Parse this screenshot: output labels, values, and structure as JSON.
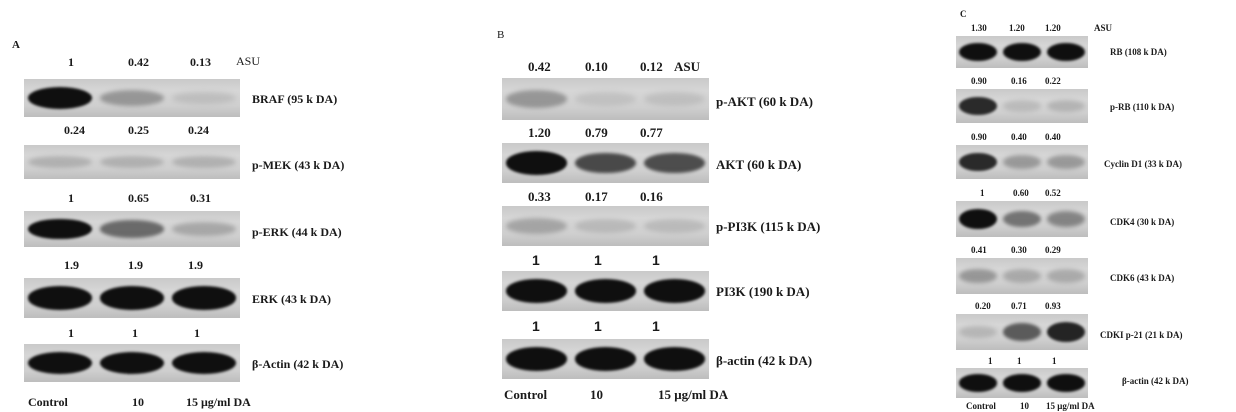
{
  "panels": {
    "A": {
      "letter": "A",
      "asu_label": "ASU",
      "blots": [
        {
          "label": "BRAF (95 k DA)",
          "values": [
            "1",
            "0.42",
            "0.13"
          ],
          "intensity": [
            1,
            0.42,
            0.13
          ]
        },
        {
          "label": "p-MEK (43 k DA)",
          "values": [
            "0.24",
            "0.25",
            "0.24"
          ],
          "intensity": [
            0.24,
            0.25,
            0.24
          ]
        },
        {
          "label": "p-ERK (44 k DA)",
          "values": [
            "1",
            "0.65",
            "0.31"
          ],
          "intensity": [
            1,
            0.65,
            0.31
          ]
        },
        {
          "label": "ERK (43 k DA)",
          "values": [
            "1.9",
            "1.9",
            "1.9"
          ],
          "intensity": [
            1.9,
            1.9,
            1.9
          ]
        },
        {
          "label": "β-Actin (42 k DA)",
          "values": [
            "1",
            "1",
            "1"
          ],
          "intensity": [
            1,
            1,
            1
          ]
        }
      ],
      "lanes": [
        "Control",
        "10",
        "15 μg/ml DA"
      ]
    },
    "B": {
      "letter": "B",
      "asu_label": "ASU",
      "blots": [
        {
          "label": "p-AKT (60 k DA)",
          "values": [
            "0.42",
            "0.10",
            "0.12"
          ],
          "intensity": [
            0.42,
            0.1,
            0.12
          ]
        },
        {
          "label": "AKT (60 k DA)",
          "values": [
            "1.20",
            "0.79",
            "0.77"
          ],
          "intensity": [
            1.2,
            0.79,
            0.77
          ]
        },
        {
          "label": "p-PI3K (115 k DA)",
          "values": [
            "0.33",
            "0.17",
            "0.16"
          ],
          "intensity": [
            0.33,
            0.17,
            0.16
          ]
        },
        {
          "label": "PI3K (190 k DA)",
          "values": [
            "1",
            "1",
            "1"
          ],
          "intensity": [
            1,
            1,
            1
          ]
        },
        {
          "label": "β-actin (42 k DA)",
          "values": [
            "1",
            "1",
            "1"
          ],
          "intensity": [
            1,
            1,
            1
          ]
        }
      ],
      "lanes": [
        "Control",
        "10",
        "15 μg/ml DA"
      ]
    },
    "C": {
      "letter": "C",
      "asu_label": "ASU",
      "blots": [
        {
          "label": "RB (108 k DA)",
          "values": [
            "1.30",
            "1.20",
            "1.20"
          ],
          "intensity": [
            1.3,
            1.2,
            1.2
          ]
        },
        {
          "label": "p-RB (110 k DA)",
          "values": [
            "0.90",
            "0.16",
            "0.22"
          ],
          "intensity": [
            0.9,
            0.16,
            0.22
          ]
        },
        {
          "label": "Cyclin D1 (33 k DA)",
          "values": [
            "0.90",
            "0.40",
            "0.40"
          ],
          "intensity": [
            0.9,
            0.4,
            0.4
          ]
        },
        {
          "label": "CDK4 (30 k DA)",
          "values": [
            "1",
            "0.60",
            "0.52"
          ],
          "intensity": [
            1,
            0.6,
            0.52
          ]
        },
        {
          "label": "CDK6 (43 k DA)",
          "values": [
            "0.41",
            "0.30",
            "0.29"
          ],
          "intensity": [
            0.41,
            0.3,
            0.29
          ]
        },
        {
          "label": "CDKI p-21 (21 k DA)",
          "values": [
            "0.20",
            "0.71",
            "0.93"
          ],
          "intensity": [
            0.2,
            0.71,
            0.93
          ]
        },
        {
          "label": "β-actin (42 k DA)",
          "values": [
            "1",
            "1",
            "1"
          ],
          "intensity": [
            1,
            1,
            1
          ]
        }
      ],
      "lanes": [
        "Control",
        "10",
        "15 μg/ml DA"
      ]
    }
  }
}
